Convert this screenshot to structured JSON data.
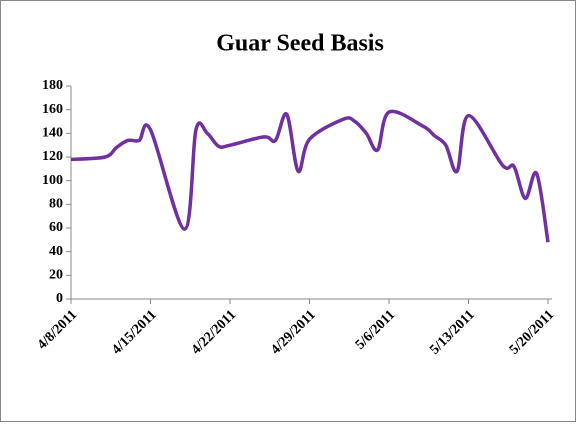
{
  "chart_data": {
    "type": "line",
    "title": "Guar Seed Basis",
    "x": [
      "4/8/2011",
      "4/11/2011",
      "4/12/2011",
      "4/13/2011",
      "4/14/2011",
      "4/15/2011",
      "4/18/2011",
      "4/19/2011",
      "4/20/2011",
      "4/21/2011",
      "4/22/2011",
      "4/25/2011",
      "4/26/2011",
      "4/27/2011",
      "4/28/2011",
      "4/29/2011",
      "5/2/2011",
      "5/3/2011",
      "5/4/2011",
      "5/5/2011",
      "5/6/2011",
      "5/9/2011",
      "5/10/2011",
      "5/11/2011",
      "5/12/2011",
      "5/13/2011",
      "5/16/2011",
      "5/17/2011",
      "5/18/2011",
      "5/19/2011",
      "5/20/2011"
    ],
    "series": [
      {
        "name": "Guar Seed Basis",
        "color": "#7030a0",
        "values": [
          118,
          120,
          128,
          134,
          134,
          143,
          59,
          143,
          140,
          129,
          130,
          137,
          134,
          156,
          108,
          135,
          152,
          150,
          140,
          126,
          158,
          146,
          138,
          130,
          108,
          155,
          113,
          112,
          85,
          106,
          48
        ]
      }
    ],
    "xlim": [
      "4/8/2011",
      "5/20/2011"
    ],
    "xticks": [
      "4/8/2011",
      "4/15/2011",
      "4/22/2011",
      "4/29/2011",
      "5/6/2011",
      "5/13/2011",
      "5/20/2011"
    ],
    "ylim": [
      0,
      180
    ],
    "yticks": [
      0,
      20,
      40,
      60,
      80,
      100,
      120,
      140,
      160,
      180
    ],
    "grid": false
  }
}
